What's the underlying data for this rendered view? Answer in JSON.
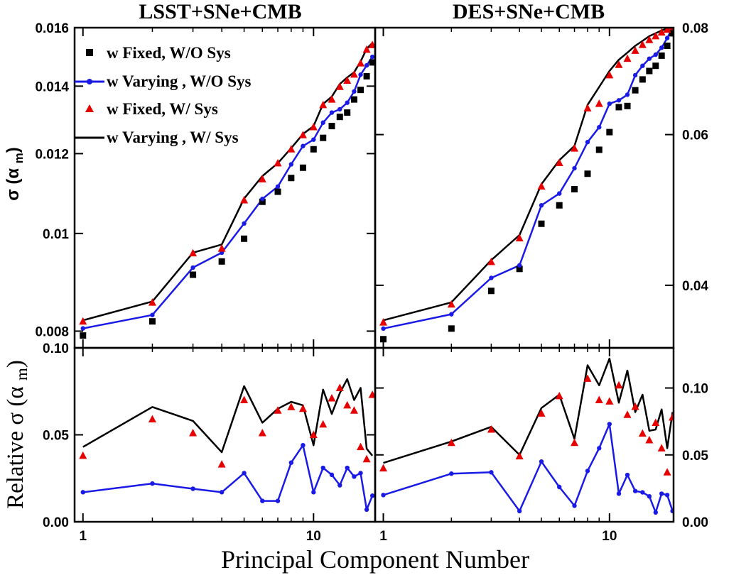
{
  "chart_data": {
    "type": "line",
    "xlabel": "Principal Component Number",
    "xscale": "log",
    "colors": {
      "fixed_nosys": "#000000",
      "vary_nosys": "#1a1ae6",
      "fixed_sys": "#e60000",
      "vary_sys": "#000000"
    },
    "legend": {
      "placement": "top-left of upper-left panel",
      "entries": [
        "w Fixed, W/O Sys",
        "w Varying , W/O Sys",
        "w Fixed, W/ Sys",
        "w Varying , W/ Sys"
      ]
    },
    "panels": [
      {
        "id": "lsst_top",
        "title": "LSST+SNe+CMB",
        "ylabel": "σ (αm)",
        "yscale": "log",
        "xlim": [
          0.92,
          18.5
        ],
        "ylim": [
          0.0077,
          0.016
        ],
        "yticks": [
          "0.008",
          "0.01",
          "0.012",
          "0.014",
          "0.016"
        ],
        "xticks": [
          "1",
          "10"
        ],
        "series": [
          {
            "name": "w Fixed, W/O Sys",
            "marker": "square",
            "x": [
              1,
              2,
              3,
              4,
              5,
              6,
              7,
              8,
              9,
              10,
              11,
              12,
              13,
              14,
              15,
              16,
              17,
              18
            ],
            "y": [
              0.00792,
              0.00818,
              0.0091,
              0.00938,
              0.00988,
              0.01075,
              0.011,
              0.01135,
              0.01162,
              0.01212,
              0.01244,
              0.01278,
              0.01305,
              0.01318,
              0.01358,
              0.01388,
              0.01432,
              0.01478
            ]
          },
          {
            "name": "w Varying , W/O Sys",
            "marker": "circle",
            "x": [
              1,
              2,
              3,
              4,
              5,
              6,
              7,
              8,
              9,
              10,
              11,
              12,
              13,
              14,
              15,
              16,
              17,
              18
            ],
            "y": [
              0.00805,
              0.0083,
              0.00925,
              0.00957,
              0.01023,
              0.01082,
              0.01113,
              0.01171,
              0.01221,
              0.01239,
              0.01288,
              0.01318,
              0.01328,
              0.01348,
              0.01383,
              0.01437,
              0.01468,
              0.01497
            ]
          },
          {
            "name": "w Fixed, W/ Sys",
            "marker": "triangle",
            "x": [
              1,
              2,
              3,
              4,
              5,
              6,
              7,
              8,
              9,
              10,
              11,
              12,
              13,
              14,
              15,
              16,
              17,
              18
            ],
            "y": [
              0.00818,
              0.00854,
              0.00956,
              0.00966,
              0.01079,
              0.01132,
              0.01174,
              0.01212,
              0.01252,
              0.01275,
              0.01341,
              0.01358,
              0.01398,
              0.01418,
              0.01438,
              0.01475,
              0.01522,
              0.01538
            ]
          },
          {
            "name": "w Varying , W/ Sys",
            "marker": "none",
            "x": [
              1,
              2,
              3,
              4,
              5,
              6,
              7,
              8,
              9,
              10,
              11,
              12,
              13,
              14,
              15,
              16,
              17,
              18
            ],
            "y": [
              0.0082,
              0.00856,
              0.00957,
              0.00975,
              0.01083,
              0.0114,
              0.01174,
              0.01215,
              0.01255,
              0.01278,
              0.01344,
              0.01367,
              0.01407,
              0.01428,
              0.01445,
              0.01481,
              0.01525,
              0.01545
            ]
          }
        ]
      },
      {
        "id": "des_top",
        "title": "DES+SNe+CMB",
        "yscale": "log",
        "xlim": [
          0.92,
          19.2
        ],
        "ylim": [
          0.0338,
          0.08
        ],
        "yticks": [
          "0.04",
          "0.06",
          "0.08"
        ],
        "xticks": [
          "1",
          "10"
        ],
        "series": [
          {
            "name": "w Fixed, W/O Sys",
            "marker": "square",
            "x": [
              1,
              2,
              3,
              4,
              5,
              6,
              7,
              8,
              9,
              10,
              11,
              12,
              13,
              14,
              15,
              16,
              17,
              18,
              19
            ],
            "y": [
              0.0346,
              0.0356,
              0.0394,
              0.0418,
              0.0472,
              0.0496,
              0.0518,
              0.054,
              0.0576,
              0.0604,
              0.0646,
              0.0648,
              0.0676,
              0.0696,
              0.0712,
              0.0722,
              0.0742,
              0.0762,
              0.0788
            ]
          },
          {
            "name": "w Varying , W/O Sys",
            "marker": "circle",
            "x": [
              1,
              2,
              3,
              4,
              5,
              6,
              7,
              8,
              9,
              10,
              11,
              12,
              13,
              14,
              15,
              16,
              17,
              18,
              19
            ],
            "y": [
              0.0356,
              0.037,
              0.0408,
              0.0422,
              0.0496,
              0.0512,
              0.0548,
              0.0588,
              0.0612,
              0.0652,
              0.0658,
              0.0668,
              0.0704,
              0.0722,
              0.0736,
              0.0744,
              0.0758,
              0.0778,
              0.08
            ]
          },
          {
            "name": "w Fixed, W/ Sys",
            "marker": "triangle",
            "x": [
              1,
              2,
              3,
              4,
              5,
              6,
              7,
              8,
              9,
              10,
              11,
              12,
              13,
              14,
              15,
              16,
              17,
              18,
              19
            ],
            "y": [
              0.0362,
              0.038,
              0.0426,
              0.0454,
              0.0522,
              0.0556,
              0.0578,
              0.0644,
              0.0652,
              0.0704,
              0.0724,
              0.0736,
              0.0752,
              0.0764,
              0.0774,
              0.0782,
              0.079,
              0.0796,
              0.0802
            ]
          },
          {
            "name": "w Varying , W/ Sys",
            "marker": "none",
            "x": [
              1,
              2,
              3,
              4,
              5,
              6,
              7,
              8,
              9,
              10,
              11,
              12,
              13,
              14,
              15,
              16,
              17,
              18,
              19
            ],
            "y": [
              0.0364,
              0.0382,
              0.0428,
              0.0458,
              0.0525,
              0.056,
              0.0582,
              0.065,
              0.0682,
              0.0712,
              0.0734,
              0.0748,
              0.0762,
              0.0772,
              0.0782,
              0.0788,
              0.0794,
              0.0798,
              0.0805
            ]
          }
        ]
      },
      {
        "id": "lsst_bottom",
        "ylabel": "Relative σ (αm)",
        "yscale": "linear",
        "xlim": [
          0.92,
          18.5
        ],
        "ylim": [
          0,
          0.1
        ],
        "yticks": [
          "0.00",
          "0.05",
          "0.10"
        ],
        "xticks": [
          "1",
          "10"
        ],
        "series": [
          {
            "name": "w Fixed, W/ Sys",
            "marker": "triangle",
            "x": [
              1,
              2,
              3,
              4,
              5,
              6,
              7,
              8,
              9,
              10,
              11,
              12,
              13,
              14,
              15,
              16,
              17,
              18
            ],
            "y": [
              0.038,
              0.059,
              0.051,
              0.033,
              0.07,
              0.051,
              0.064,
              0.066,
              0.065,
              0.05,
              0.056,
              0.071,
              0.077,
              0.067,
              0.064,
              0.043,
              0.036,
              0.073
            ]
          },
          {
            "name": "w Varying , W/ Sys",
            "marker": "none",
            "x": [
              1,
              2,
              3,
              4,
              5,
              6,
              7,
              8,
              9,
              10,
              11,
              12,
              13,
              14,
              15,
              16,
              17,
              18
            ],
            "y": [
              0.043,
              0.066,
              0.058,
              0.04,
              0.078,
              0.057,
              0.065,
              0.069,
              0.067,
              0.044,
              0.076,
              0.062,
              0.074,
              0.082,
              0.07,
              0.077,
              0.042,
              0.038
            ]
          },
          {
            "name": "w Varying , W/O Sys",
            "marker": "circle",
            "x": [
              1,
              2,
              3,
              4,
              5,
              6,
              7,
              8,
              9,
              10,
              11,
              12,
              13,
              14,
              15,
              16,
              17,
              18
            ],
            "y": [
              0.017,
              0.022,
              0.019,
              0.017,
              0.028,
              0.012,
              0.012,
              0.034,
              0.044,
              0.017,
              0.031,
              0.027,
              0.021,
              0.031,
              0.026,
              0.028,
              0.007,
              0.015
            ]
          }
        ]
      },
      {
        "id": "des_bottom",
        "yscale": "linear",
        "xlim": [
          0.92,
          19.2
        ],
        "ylim": [
          0,
          0.13
        ],
        "yticks": [
          "0.00",
          "0.05",
          "0.10"
        ],
        "xticks": [
          "1",
          "10"
        ],
        "series": [
          {
            "name": "w Fixed, W/ Sys",
            "marker": "triangle",
            "x": [
              1,
              2,
              3,
              4,
              5,
              6,
              7,
              8,
              9,
              10,
              11,
              12,
              13,
              14,
              15,
              16,
              17,
              18,
              19
            ],
            "y": [
              0.04,
              0.059,
              0.069,
              0.049,
              0.081,
              0.094,
              0.059,
              0.107,
              0.091,
              0.09,
              0.102,
              0.08,
              0.086,
              0.066,
              0.061,
              0.074,
              0.055,
              0.037,
              0.078
            ]
          },
          {
            "name": "w Varying , W/ Sys",
            "marker": "none",
            "x": [
              1,
              2,
              3,
              4,
              5,
              6,
              7,
              8,
              9,
              10,
              11,
              12,
              13,
              14,
              15,
              16,
              17,
              18,
              19
            ],
            "y": [
              0.044,
              0.06,
              0.071,
              0.05,
              0.085,
              0.095,
              0.062,
              0.117,
              0.102,
              0.122,
              0.089,
              0.113,
              0.082,
              0.095,
              0.068,
              0.069,
              0.084,
              0.055,
              0.082
            ]
          },
          {
            "name": "w Varying , W/O Sys",
            "marker": "circle",
            "x": [
              1,
              2,
              3,
              4,
              5,
              6,
              7,
              8,
              9,
              10,
              11,
              12,
              13,
              14,
              15,
              16,
              17,
              18,
              19
            ],
            "y": [
              0.02,
              0.036,
              0.037,
              0.008,
              0.045,
              0.026,
              0.012,
              0.038,
              0.055,
              0.073,
              0.021,
              0.035,
              0.023,
              0.022,
              0.019,
              0.007,
              0.021,
              0.02,
              0.008
            ]
          }
        ]
      }
    ]
  }
}
